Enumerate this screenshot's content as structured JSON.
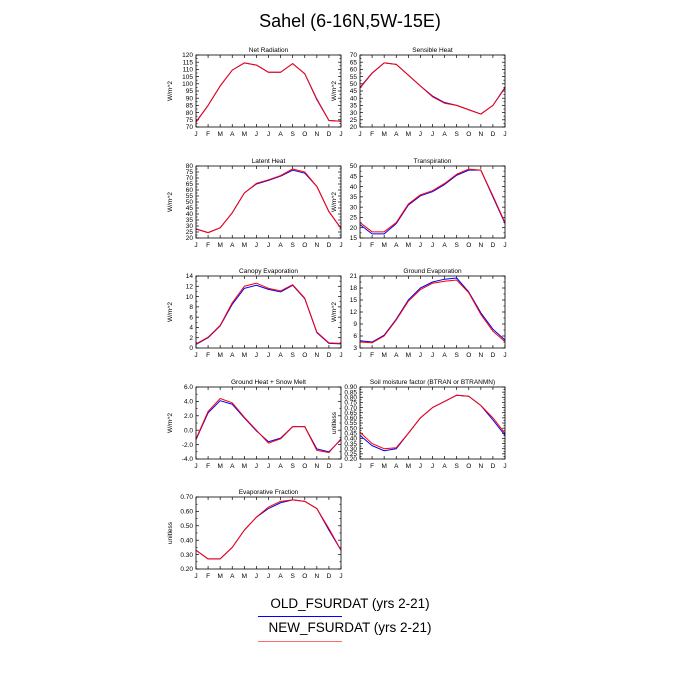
{
  "title": "Sahel (6-16N,5W-15E)",
  "month_labels": [
    "J",
    "F",
    "M",
    "A",
    "M",
    "J",
    "J",
    "A",
    "S",
    "O",
    "N",
    "D",
    "J"
  ],
  "legend": [
    {
      "label": "OLD_FSURDAT (yrs 2-21)",
      "color": "#0000ff"
    },
    {
      "label": "NEW_FSURDAT (yrs 2-21)",
      "color": "#ff0000"
    }
  ],
  "chart_data": [
    {
      "type": "line",
      "title": "Net Radiation",
      "ylabel": "W/m^2",
      "ylim": [
        70,
        120
      ],
      "yticks": [
        "70",
        "75",
        "80",
        "85",
        "90",
        "95",
        "100",
        "105",
        "110",
        "115",
        "120"
      ],
      "series": [
        {
          "name": "OLD_FSURDAT (yrs 2-21)",
          "values": [
            73.5,
            85,
            98.5,
            109.5,
            114.5,
            113,
            108,
            108,
            114,
            107,
            89,
            74.5,
            74
          ]
        },
        {
          "name": "NEW_FSURDAT (yrs 2-21)",
          "values": [
            73.2,
            85,
            98.5,
            109.5,
            114.5,
            113,
            108,
            108,
            114,
            107,
            89.5,
            74.5,
            74
          ]
        }
      ]
    },
    {
      "type": "line",
      "title": "Sensible Heat",
      "ylabel": "W/m^2",
      "ylim": [
        20,
        70
      ],
      "yticks": [
        "20",
        "25",
        "30",
        "35",
        "40",
        "45",
        "50",
        "55",
        "60",
        "65",
        "70"
      ],
      "series": [
        {
          "name": "OLD_FSURDAT (yrs 2-21)",
          "values": [
            47.5,
            57.5,
            64.5,
            63.5,
            56,
            48.5,
            41.5,
            37,
            35,
            32,
            29,
            35,
            47.5
          ]
        },
        {
          "name": "NEW_FSURDAT (yrs 2-21)",
          "values": [
            47,
            57.3,
            64.5,
            63.5,
            56,
            48.5,
            41,
            36.5,
            35,
            32,
            29,
            35,
            47
          ]
        }
      ]
    },
    {
      "type": "line",
      "title": "Latent Heat",
      "ylabel": "W/m^2",
      "ylim": [
        20,
        80
      ],
      "yticks": [
        "20",
        "25",
        "30",
        "35",
        "40",
        "45",
        "50",
        "55",
        "60",
        "65",
        "70",
        "75",
        "80"
      ],
      "series": [
        {
          "name": "OLD_FSURDAT (yrs 2-21)",
          "values": [
            27.5,
            24.5,
            28.5,
            41,
            57.5,
            65,
            68,
            71.5,
            76.5,
            74,
            63,
            42,
            28
          ]
        },
        {
          "name": "NEW_FSURDAT (yrs 2-21)",
          "values": [
            27.5,
            24.5,
            28.5,
            41,
            57.5,
            65.5,
            68.5,
            72,
            77.5,
            75,
            63,
            42,
            28
          ]
        }
      ]
    },
    {
      "type": "line",
      "title": "Transpiration",
      "ylabel": "W/m^2",
      "ylim": [
        15,
        50
      ],
      "yticks": [
        "15",
        "20",
        "25",
        "30",
        "35",
        "40",
        "45",
        "50"
      ],
      "series": [
        {
          "name": "OLD_FSURDAT (yrs 2-21)",
          "values": [
            21.5,
            17,
            17,
            22,
            31,
            35.5,
            37.5,
            41,
            45.5,
            48,
            48,
            35,
            22
          ]
        },
        {
          "name": "NEW_FSURDAT (yrs 2-21)",
          "values": [
            22.5,
            18,
            18,
            22.5,
            31.5,
            36,
            38,
            41.5,
            46,
            48.5,
            48,
            35.5,
            22.5
          ]
        }
      ]
    },
    {
      "type": "line",
      "title": "Canopy Evaporation",
      "ylabel": "W/m^2",
      "ylim": [
        0,
        14
      ],
      "yticks": [
        "0",
        "2",
        "4",
        "6",
        "8",
        "10",
        "12",
        "14"
      ],
      "series": [
        {
          "name": "OLD_FSURDAT (yrs 2-21)",
          "values": [
            0.7,
            2,
            4.3,
            8.5,
            11.6,
            12.2,
            11.4,
            10.9,
            12.2,
            9.6,
            3,
            0.9,
            0.8
          ]
        },
        {
          "name": "NEW_FSURDAT (yrs 2-21)",
          "values": [
            0.8,
            2.1,
            4.4,
            8.8,
            12,
            12.6,
            11.6,
            11.1,
            12.3,
            9.7,
            3.1,
            1,
            0.9
          ]
        }
      ]
    },
    {
      "type": "line",
      "title": "Ground Evaporation",
      "ylabel": "W/m^2",
      "ylim": [
        3,
        21
      ],
      "yticks": [
        "3",
        "6",
        "9",
        "12",
        "15",
        "18",
        "21"
      ],
      "series": [
        {
          "name": "OLD_FSURDAT (yrs 2-21)",
          "values": [
            4.8,
            4.5,
            6.2,
            10.2,
            15,
            18,
            19.5,
            20.2,
            20.5,
            17,
            11.8,
            7.7,
            5
          ]
        },
        {
          "name": "NEW_FSURDAT (yrs 2-21)",
          "values": [
            4.5,
            4.3,
            6,
            10,
            14.7,
            17.6,
            19.2,
            19.7,
            20,
            16.8,
            11.4,
            7.2,
            4.6
          ]
        }
      ]
    },
    {
      "type": "line",
      "title": "Ground Heat + Snow Melt",
      "ylabel": "W/m^2",
      "ylim": [
        -4,
        6
      ],
      "yticks": [
        "-4.0",
        "-2.0",
        "0.0",
        "2.0",
        "4.0",
        "6.0"
      ],
      "series": [
        {
          "name": "OLD_FSURDAT (yrs 2-21)",
          "values": [
            -1.3,
            2.4,
            4.1,
            3.6,
            1.7,
            -0.1,
            -1.6,
            -1.1,
            0.5,
            0.5,
            -2.6,
            -3,
            -1.3
          ]
        },
        {
          "name": "NEW_FSURDAT (yrs 2-21)",
          "values": [
            -1.2,
            2.6,
            4.4,
            3.8,
            1.8,
            0,
            -1.8,
            -1.2,
            0.5,
            0.5,
            -2.8,
            -3.1,
            -1.2
          ]
        }
      ]
    },
    {
      "type": "line",
      "title": "Soil moisture factor (BTRAN or BTRANMN)",
      "ylabel": "unitless",
      "ylim": [
        0.2,
        0.9
      ],
      "yticks": [
        "0.20",
        "0.25",
        "0.30",
        "0.35",
        "0.40",
        "0.45",
        "0.50",
        "0.55",
        "0.60",
        "0.65",
        "0.70",
        "0.75",
        "0.80",
        "0.85",
        "0.90"
      ],
      "series": [
        {
          "name": "OLD_FSURDAT (yrs 2-21)",
          "values": [
            0.43,
            0.33,
            0.28,
            0.3,
            0.45,
            0.6,
            0.7,
            0.76,
            0.82,
            0.81,
            0.72,
            0.58,
            0.43
          ]
        },
        {
          "name": "NEW_FSURDAT (yrs 2-21)",
          "values": [
            0.46,
            0.35,
            0.3,
            0.31,
            0.45,
            0.6,
            0.7,
            0.76,
            0.82,
            0.81,
            0.72,
            0.6,
            0.45
          ]
        }
      ]
    },
    {
      "type": "line",
      "title": "Evaporative Fraction",
      "ylabel": "unitless",
      "ylim": [
        0.2,
        0.7
      ],
      "yticks": [
        "0.20",
        "0.30",
        "0.40",
        "0.50",
        "0.60",
        "0.70"
      ],
      "series": [
        {
          "name": "OLD_FSURDAT (yrs 2-21)",
          "values": [
            0.33,
            0.27,
            0.27,
            0.35,
            0.47,
            0.56,
            0.62,
            0.66,
            0.68,
            0.67,
            0.62,
            0.47,
            0.33
          ]
        },
        {
          "name": "NEW_FSURDAT (yrs 2-21)",
          "values": [
            0.33,
            0.27,
            0.27,
            0.35,
            0.47,
            0.56,
            0.63,
            0.67,
            0.68,
            0.67,
            0.62,
            0.48,
            0.33
          ]
        }
      ]
    }
  ]
}
